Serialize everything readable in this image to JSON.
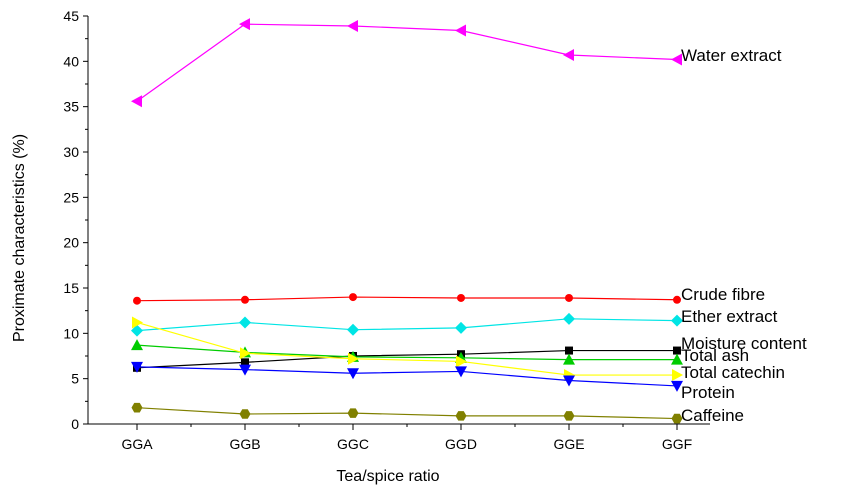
{
  "chart_data": {
    "type": "line",
    "xlabel": "Tea/spice ratio",
    "ylabel": "Proximate characteristics (%)",
    "categories": [
      "GGA",
      "GGB",
      "GGC",
      "GGD",
      "GGE",
      "GGF"
    ],
    "ylim": [
      0,
      45
    ],
    "yticks": [
      "0",
      "5",
      "10",
      "15",
      "20",
      "25",
      "30",
      "35",
      "40",
      "45"
    ],
    "grid": false,
    "legend": "inline labels at right end of each series",
    "series": [
      {
        "name": "Water extract",
        "values": [
          35.6,
          44.1,
          43.9,
          43.4,
          40.7,
          40.2
        ],
        "color": "#ff00ff",
        "marker": "triangle-left"
      },
      {
        "name": "Crude fibre",
        "values": [
          13.6,
          13.7,
          14.0,
          13.9,
          13.9,
          13.7
        ],
        "color": "#ff0000",
        "marker": "circle"
      },
      {
        "name": "Ether extract",
        "values": [
          10.3,
          11.2,
          10.4,
          10.6,
          11.6,
          11.4
        ],
        "color": "#00e5e5",
        "marker": "diamond"
      },
      {
        "name": "Moisture content",
        "values": [
          6.2,
          6.8,
          7.5,
          7.7,
          8.1,
          8.1
        ],
        "color": "#000000",
        "marker": "square"
      },
      {
        "name": "Total ash",
        "values": [
          8.7,
          7.9,
          7.4,
          7.3,
          7.1,
          7.1
        ],
        "color": "#00cc00",
        "marker": "triangle-up"
      },
      {
        "name": "Total catechin",
        "values": [
          11.2,
          7.8,
          7.2,
          6.9,
          5.4,
          5.4
        ],
        "color": "#ffff00",
        "marker": "triangle-right"
      },
      {
        "name": "Protein",
        "values": [
          6.3,
          6.0,
          5.6,
          5.8,
          4.8,
          4.2
        ],
        "color": "#0000ff",
        "marker": "triangle-down"
      },
      {
        "name": "Caffeine",
        "values": [
          1.8,
          1.1,
          1.2,
          0.9,
          0.9,
          0.6
        ],
        "color": "#808000",
        "marker": "hexagon"
      }
    ]
  }
}
